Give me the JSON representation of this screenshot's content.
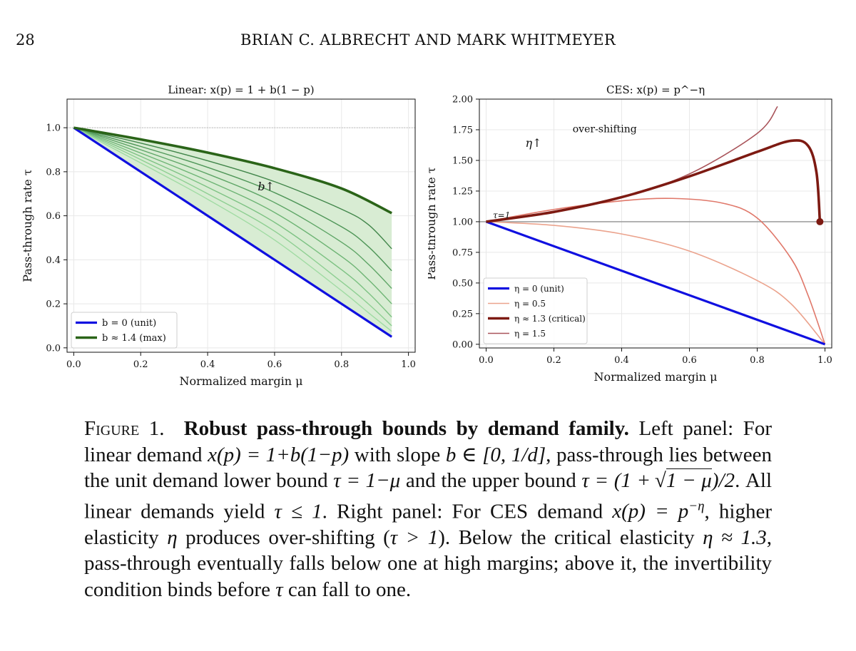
{
  "header": {
    "page_number": "28",
    "running_head": "BRIAN C. ALBRECHT AND MARK WHITMEYER"
  },
  "chart_data": [
    {
      "type": "line",
      "title": "Linear: x(p) = 1 + b(1 − p)",
      "xlabel": "Normalized margin μ",
      "ylabel": "Pass-through rate τ",
      "xlim": [
        -0.02,
        1.02
      ],
      "ylim": [
        -0.02,
        1.13
      ],
      "xticks": [
        "0.0",
        "0.2",
        "0.4",
        "0.6",
        "0.8",
        "1.0"
      ],
      "yticks": [
        "0.0",
        "0.2",
        "0.4",
        "0.6",
        "0.8",
        "1.0"
      ],
      "grid": true,
      "legend_position": "lower-left",
      "annotation": "b↑",
      "reference_line": {
        "y": 1.0,
        "style": "dotted"
      },
      "shaded_region": {
        "between": [
          "b = 0 (unit)",
          "b ≈ 1.4 (max)"
        ],
        "color": "#d8ecd3"
      },
      "series": [
        {
          "name": "b = 0 (unit)",
          "legend": true,
          "color": "#1010e0",
          "width": 3.2,
          "x": [
            0,
            0.95
          ],
          "y": [
            1.0,
            0.05
          ]
        },
        {
          "name": "b ≈ 1.4 (max)",
          "legend": true,
          "color": "#2a6418",
          "width": 3.6,
          "x": [
            0,
            0.2,
            0.4,
            0.6,
            0.8,
            0.95
          ],
          "y": [
            1.0,
            0.947,
            0.887,
            0.816,
            0.724,
            0.612
          ]
        },
        {
          "name": "",
          "legend": false,
          "color": "#41864a",
          "width": 1.4,
          "x": [
            0,
            0.2,
            0.4,
            0.6,
            0.8,
            0.88,
            0.95
          ],
          "y": [
            1.0,
            0.93,
            0.85,
            0.755,
            0.63,
            0.56,
            0.45
          ]
        },
        {
          "name": "",
          "legend": false,
          "color": "#4f9658",
          "width": 1.4,
          "x": [
            0,
            0.2,
            0.4,
            0.6,
            0.8,
            0.88,
            0.95
          ],
          "y": [
            1.0,
            0.915,
            0.82,
            0.705,
            0.55,
            0.46,
            0.35
          ]
        },
        {
          "name": "",
          "legend": false,
          "color": "#5ea566",
          "width": 1.4,
          "x": [
            0,
            0.2,
            0.4,
            0.6,
            0.8,
            0.88,
            0.95
          ],
          "y": [
            1.0,
            0.9,
            0.79,
            0.66,
            0.48,
            0.38,
            0.27
          ]
        },
        {
          "name": "",
          "legend": false,
          "color": "#6db474",
          "width": 1.4,
          "x": [
            0,
            0.2,
            0.4,
            0.6,
            0.8,
            0.88,
            0.95
          ],
          "y": [
            1.0,
            0.885,
            0.76,
            0.615,
            0.415,
            0.31,
            0.2
          ]
        },
        {
          "name": "",
          "legend": false,
          "color": "#7dc283",
          "width": 1.4,
          "x": [
            0,
            0.2,
            0.4,
            0.6,
            0.8,
            0.88,
            0.95
          ],
          "y": [
            1.0,
            0.87,
            0.73,
            0.57,
            0.355,
            0.25,
            0.14
          ]
        },
        {
          "name": "",
          "legend": false,
          "color": "#8ecf92",
          "width": 1.4,
          "x": [
            0,
            0.2,
            0.4,
            0.6,
            0.8,
            0.88,
            0.95
          ],
          "y": [
            1.0,
            0.855,
            0.7,
            0.53,
            0.3,
            0.2,
            0.1
          ]
        },
        {
          "name": "",
          "legend": false,
          "color": "#a0dba3",
          "width": 1.4,
          "x": [
            0,
            0.2,
            0.4,
            0.6,
            0.8,
            0.88,
            0.95
          ],
          "y": [
            1.0,
            0.84,
            0.675,
            0.49,
            0.26,
            0.16,
            0.075
          ]
        }
      ]
    },
    {
      "type": "line",
      "title": "CES: x(p) = p^−η",
      "xlabel": "Normalized margin μ",
      "ylabel": "Pass-through rate τ",
      "xlim": [
        -0.02,
        1.02
      ],
      "ylim": [
        -0.03,
        2.0
      ],
      "xticks": [
        "0.0",
        "0.2",
        "0.4",
        "0.6",
        "0.8",
        "1.0"
      ],
      "yticks": [
        "0.00",
        "0.25",
        "0.50",
        "0.75",
        "1.00",
        "1.25",
        "1.50",
        "1.75",
        "2.00"
      ],
      "grid": true,
      "legend_position": "lower-left",
      "annotations": [
        "η↑",
        "over-shifting",
        "τ=1"
      ],
      "reference_line": {
        "y": 1.0,
        "style": "solid-gray"
      },
      "series": [
        {
          "name": "η = 0 (unit)",
          "legend": true,
          "color": "#1010e0",
          "width": 3.2,
          "x": [
            0,
            1.0
          ],
          "y": [
            1.0,
            0.0
          ]
        },
        {
          "name": "η = 0.5",
          "legend": true,
          "color": "#eba38d",
          "width": 1.6,
          "x": [
            0,
            0.2,
            0.4,
            0.6,
            0.8,
            0.9,
            1.0
          ],
          "y": [
            1.0,
            0.97,
            0.9,
            0.76,
            0.52,
            0.33,
            0.0
          ]
        },
        {
          "name": "",
          "legend": false,
          "color": "#e0786a",
          "width": 1.6,
          "x": [
            0,
            0.2,
            0.4,
            0.55,
            0.7,
            0.8,
            0.9,
            0.95,
            1.0
          ],
          "y": [
            1.0,
            1.1,
            1.17,
            1.19,
            1.15,
            1.03,
            0.7,
            0.4,
            0.0
          ]
        },
        {
          "name": "η ≈ 1.3 (critical)",
          "legend": true,
          "color": "#7d1a12",
          "width": 3.6,
          "x": [
            0,
            0.2,
            0.4,
            0.6,
            0.8,
            0.9,
            0.95,
            0.975,
            0.985
          ],
          "y": [
            1.0,
            1.08,
            1.2,
            1.37,
            1.57,
            1.66,
            1.62,
            1.4,
            1.0
          ]
        },
        {
          "name": "η = 1.5",
          "legend": true,
          "color": "#a9545a",
          "width": 1.6,
          "x": [
            0,
            0.2,
            0.4,
            0.6,
            0.8,
            0.86
          ],
          "y": [
            1.0,
            1.08,
            1.2,
            1.39,
            1.72,
            1.94
          ]
        }
      ],
      "points": [
        {
          "x": 0.985,
          "y": 1.0,
          "color": "#7d1a12"
        }
      ]
    }
  ],
  "caption": {
    "figure_label": "Figure 1.",
    "title": "Robust pass-through bounds by demand family.",
    "left_intro": "Left panel: For linear demand",
    "left_demand": "x(p) = 1+b(1−p)",
    "left_slope_text": "with slope",
    "left_slope_expr": "b ∈ [0, 1/d]",
    "left_mid": ", pass-through lies between the unit demand lower bound",
    "left_lower": "τ = 1−μ",
    "left_and": "and the upper bound",
    "upper_lhs": "τ = (1 +",
    "upper_rad": "1 − μ",
    "upper_rhs": ")/2",
    "left_end": ". All linear demands yield",
    "left_tau_bound": "τ ≤ 1",
    "right_intro": ". Right panel: For CES demand",
    "right_demand": "x(p) = p",
    "right_demand_exp": "−η",
    "right_mid": ", higher elasticity",
    "right_eta": "η",
    "right_mid2": "produces over-shifting (",
    "right_over": "τ > 1",
    "right_mid3": "). Below the critical elasticity",
    "right_crit": "η ≈ 1.3",
    "right_end": ", pass-through eventually falls below one at high margins; above it, the invertibility condition binds before",
    "right_tau": "τ",
    "right_end2": "can fall to one."
  }
}
